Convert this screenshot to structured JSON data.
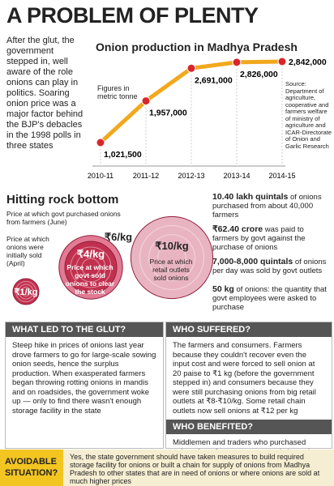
{
  "header": {
    "title": "A PROBLEM OF PLENTY"
  },
  "intro": "After the glut, the government stepped in, well aware of the role onions can play in politics. Soaring onion price was a major factor behind the BJP's debacles in the 1998 polls in three states",
  "chart_data": {
    "type": "line",
    "title": "Onion production in Madhya Pradesh",
    "note": "Figures in metric tonne",
    "source": "Source: Department of agriculture, cooperative and farmers welfare of ministry of agriculture and ICAR-Directorate of Onion and Garlic Research",
    "categories": [
      "2010-11",
      "2011-12",
      "2012-13",
      "2013-14",
      "2014-15"
    ],
    "values": [
      1021500,
      1957000,
      2691000,
      2826000,
      2842000
    ],
    "value_labels": [
      "1,021,500",
      "1,957,000",
      "2,691,000",
      "2,826,000",
      "2,842,000"
    ],
    "color": "#f2a81d",
    "marker_color": "#d9262b"
  },
  "rock_bottom": {
    "title": "Hitting rock bottom",
    "prices": [
      {
        "value": 1,
        "label": "₹1/kg",
        "caption": "Price at which onions were initially sold (April)"
      },
      {
        "value": 6,
        "label": "₹6/kg",
        "caption": "Price at which govt purchased onions from farmers (June)"
      },
      {
        "value": 4,
        "label": "₹4/kg",
        "caption": "Price at which govt sold onions to clear the stock"
      },
      {
        "value": 10,
        "label": "₹10/kg",
        "caption": "Price at which retail outlets sold onions"
      }
    ]
  },
  "stats": [
    {
      "bold": "10.40 lakh quintals",
      "text": "of onions purchased from about 40,000 farmers"
    },
    {
      "bold": "₹62.40 crore",
      "text": "was paid to farmers by govt against the purchase of onions"
    },
    {
      "bold": "7,000-8,000 quintals",
      "text": "of onions per day was sold by govt outlets"
    },
    {
      "bold": "50 kg",
      "text": "of onions: the quantity that govt employees were asked to purchase"
    }
  ],
  "glut": {
    "heading": "WHAT LED TO THE GLUT?",
    "text": "Steep hike in prices of onions last year drove farmers to go for large-scale sowing onion seeds, hence the surplus production. When exasperated farmers began throwing rotting onions in mandis and on roadsides, the government woke up — only to find there wasn't enough storage facility in the state"
  },
  "suffered": {
    "heading": "WHO SUFFERED?",
    "text": "The farmers and consumers. Farmers because they couldn't recover even the input cost and were forced to sell onion at 20 paise to ₹1 kg (before the government stepped in) and consumers because they were still purchasing onions from big retail outlets at ₹8-₹10/kg. Some retail chain outlets now sell onions at ₹12 per kg"
  },
  "benefited": {
    "heading": "WHO BENEFITED?",
    "text": "Middlemen and traders who purchased onions from farmers at extremely low prices and sold at much higher prices"
  },
  "footer": {
    "label": "AVOIDABLE SITUATION?",
    "text": "Yes, the state government should have taken measures to build required storage facility for onions or built a chain for supply of onions from Madhya Pradesh to other states that are in need of onions or where onions are sold at much higher prices"
  }
}
